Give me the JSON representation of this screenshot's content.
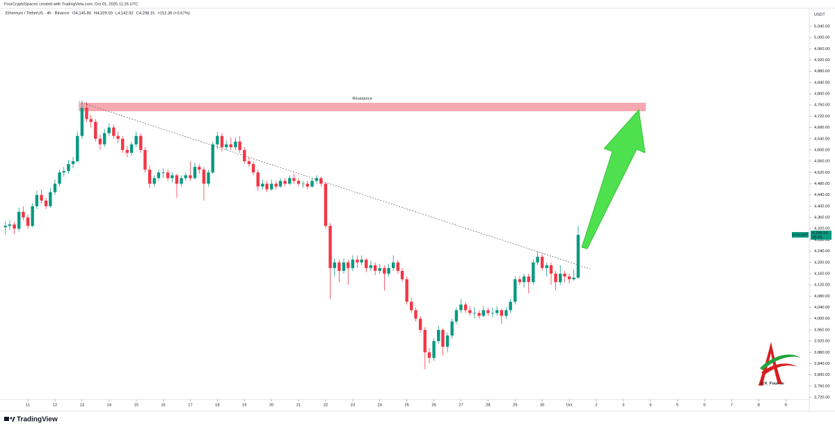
{
  "chart_data": {
    "type": "candlestick",
    "header": "FourCryptoSpaces created with TradingView.com, Oct 01, 2025 11:26 UTC",
    "instrument": "Ethereum / TetherUS · 4h · Binance",
    "legend_values": [
      "O4,145.80",
      "H4,329.00",
      "L4,142.92",
      "C4,298.15",
      "+152.36 (+3.67%)"
    ],
    "y_axis_label": "USDT",
    "symbol": "ETHUSDT",
    "last_price_label": "4,298.15",
    "countdown": "33:26",
    "brand": "TradingView",
    "watermark": "@X_Four_Iv",
    "up_color": "#089981",
    "down_color": "#f23645",
    "xlim": [
      9.97,
      39.79
    ],
    "ylim": [
      3712.5,
      5104
    ],
    "xticks": [
      11,
      12,
      13,
      14,
      15,
      16,
      17,
      18,
      19,
      20,
      21,
      22,
      23,
      24,
      25,
      26,
      27,
      28,
      29,
      30,
      {
        "value": 31,
        "label": "Oct"
      },
      {
        "value": 32,
        "label": "2"
      },
      {
        "value": 33,
        "label": "3"
      },
      {
        "value": 34,
        "label": "4"
      },
      {
        "value": 35,
        "label": "5"
      },
      {
        "value": 36,
        "label": "6"
      },
      {
        "value": 37,
        "label": "7"
      },
      {
        "value": 38,
        "label": "8"
      },
      {
        "value": 39,
        "label": "9"
      }
    ],
    "yticks": [
      {
        "value": 3720,
        "label": "3,720.00"
      },
      {
        "value": 3760,
        "label": "3,760.00"
      },
      {
        "value": 3800,
        "label": "3,800.00"
      },
      {
        "value": 3840,
        "label": "3,840.00"
      },
      {
        "value": 3880,
        "label": "3,880.00"
      },
      {
        "value": 3920,
        "label": "3,920.00"
      },
      {
        "value": 3960,
        "label": "3,960.00"
      },
      {
        "value": 4000,
        "label": "4,000.00"
      },
      {
        "value": 4040,
        "label": "4,040.00"
      },
      {
        "value": 4080,
        "label": "4,080.00"
      },
      {
        "value": 4120,
        "label": "4,120.00"
      },
      {
        "value": 4160,
        "label": "4,160.00"
      },
      {
        "value": 4200,
        "label": "4,200.00"
      },
      {
        "value": 4240,
        "label": "4,240.00"
      },
      {
        "value": 4280,
        "label": "4,280.00"
      },
      {
        "value": 4320,
        "label": "4,320.00"
      },
      {
        "value": 4360,
        "label": "4,360.00"
      },
      {
        "value": 4400,
        "label": "4,400.00"
      },
      {
        "value": 4440,
        "label": "4,440.00"
      },
      {
        "value": 4480,
        "label": "4,480.00"
      },
      {
        "value": 4520,
        "label": "4,520.00"
      },
      {
        "value": 4560,
        "label": "4,560.00"
      },
      {
        "value": 4600,
        "label": "4,600.00"
      },
      {
        "value": 4640,
        "label": "4,640.00"
      },
      {
        "value": 4680,
        "label": "4,680.00"
      },
      {
        "value": 4720,
        "label": "4,720.00"
      },
      {
        "value": 4760,
        "label": "4,760.00"
      },
      {
        "value": 4800,
        "label": "4,800.00"
      },
      {
        "value": 4840,
        "label": "4,840.00"
      },
      {
        "value": 4880,
        "label": "4,880.00"
      },
      {
        "value": 4920,
        "label": "4,920.00"
      },
      {
        "value": 4960,
        "label": "4,960.00"
      },
      {
        "value": 5000,
        "label": "5,000.00"
      },
      {
        "value": 5040,
        "label": "5,040.00"
      }
    ],
    "resistance": {
      "label": "Resistance",
      "color": "#f5a0a8",
      "xlim": [
        12.88,
        33.83
      ],
      "ylim": [
        4738,
        4768
      ]
    },
    "trendline": {
      "x": [
        12.88,
        31.77
      ],
      "y": [
        4772,
        4177
      ]
    },
    "x": [
      10.17,
      10.33,
      10.5,
      10.67,
      10.83,
      11,
      11.17,
      11.33,
      11.5,
      11.67,
      11.83,
      12,
      12.17,
      12.33,
      12.5,
      12.67,
      12.83,
      13,
      13.17,
      13.33,
      13.5,
      13.67,
      13.83,
      14,
      14.17,
      14.33,
      14.5,
      14.67,
      14.83,
      15,
      15.17,
      15.33,
      15.5,
      15.67,
      15.83,
      16,
      16.17,
      16.33,
      16.5,
      16.67,
      16.83,
      17,
      17.17,
      17.33,
      17.5,
      17.67,
      17.83,
      18,
      18.17,
      18.33,
      18.5,
      18.67,
      18.83,
      19,
      19.17,
      19.33,
      19.5,
      19.67,
      19.83,
      20,
      20.17,
      20.33,
      20.5,
      20.67,
      20.83,
      21,
      21.17,
      21.33,
      21.5,
      21.67,
      21.83,
      22,
      22.17,
      22.33,
      22.5,
      22.67,
      22.83,
      23,
      23.17,
      23.33,
      23.5,
      23.67,
      23.83,
      24,
      24.17,
      24.33,
      24.5,
      24.67,
      24.83,
      25,
      25.17,
      25.33,
      25.5,
      25.67,
      25.83,
      26,
      26.17,
      26.33,
      26.5,
      26.67,
      26.83,
      27,
      27.17,
      27.33,
      27.5,
      27.67,
      27.83,
      28,
      28.17,
      28.33,
      28.5,
      28.67,
      28.83,
      29,
      29.17,
      29.33,
      29.5,
      29.67,
      29.83,
      30,
      30.17,
      30.33,
      30.5,
      30.67,
      30.83,
      31,
      31.17,
      31.33
    ],
    "ohlc": [
      [
        4325,
        4345,
        4300,
        4330
      ],
      [
        4330,
        4350,
        4315,
        4335
      ],
      [
        4335,
        4345,
        4300,
        4320
      ],
      [
        4320,
        4395,
        4310,
        4380
      ],
      [
        4380,
        4400,
        4350,
        4360
      ],
      [
        4360,
        4370,
        4320,
        4330
      ],
      [
        4330,
        4410,
        4325,
        4400
      ],
      [
        4400,
        4455,
        4390,
        4440
      ],
      [
        4440,
        4460,
        4410,
        4420
      ],
      [
        4420,
        4430,
        4390,
        4400
      ],
      [
        4400,
        4465,
        4395,
        4450
      ],
      [
        4450,
        4495,
        4440,
        4480
      ],
      [
        4480,
        4530,
        4470,
        4520
      ],
      [
        4520,
        4540,
        4505,
        4525
      ],
      [
        4525,
        4565,
        4515,
        4550
      ],
      [
        4550,
        4575,
        4535,
        4560
      ],
      [
        4560,
        4665,
        4555,
        4650
      ],
      [
        4650,
        4775,
        4640,
        4750
      ],
      [
        4750,
        4770,
        4700,
        4710
      ],
      [
        4710,
        4725,
        4680,
        4700
      ],
      [
        4700,
        4710,
        4630,
        4640
      ],
      [
        4640,
        4655,
        4600,
        4620
      ],
      [
        4620,
        4675,
        4610,
        4660
      ],
      [
        4660,
        4695,
        4650,
        4680
      ],
      [
        4680,
        4690,
        4640,
        4650
      ],
      [
        4650,
        4665,
        4625,
        4640
      ],
      [
        4640,
        4650,
        4590,
        4600
      ],
      [
        4600,
        4615,
        4575,
        4590
      ],
      [
        4590,
        4630,
        4580,
        4620
      ],
      [
        4620,
        4665,
        4610,
        4650
      ],
      [
        4650,
        4660,
        4590,
        4600
      ],
      [
        4600,
        4610,
        4520,
        4530
      ],
      [
        4530,
        4545,
        4465,
        4480
      ],
      [
        4480,
        4510,
        4470,
        4500
      ],
      [
        4500,
        4530,
        4490,
        4520
      ],
      [
        4520,
        4535,
        4500,
        4520
      ],
      [
        4520,
        4530,
        4490,
        4500
      ],
      [
        4500,
        4520,
        4485,
        4510
      ],
      [
        4510,
        4515,
        4430,
        4480
      ],
      [
        4480,
        4510,
        4470,
        4500
      ],
      [
        4500,
        4520,
        4490,
        4510
      ],
      [
        4510,
        4560,
        4490,
        4500
      ],
      [
        4500,
        4555,
        4495,
        4540
      ],
      [
        4540,
        4550,
        4515,
        4530
      ],
      [
        4530,
        4540,
        4420,
        4480
      ],
      [
        4480,
        4530,
        4470,
        4520
      ],
      [
        4520,
        4630,
        4515,
        4620
      ],
      [
        4620,
        4665,
        4605,
        4650
      ],
      [
        4650,
        4660,
        4595,
        4610
      ],
      [
        4610,
        4635,
        4600,
        4620
      ],
      [
        4620,
        4645,
        4600,
        4610
      ],
      [
        4610,
        4645,
        4600,
        4630
      ],
      [
        4630,
        4650,
        4590,
        4600
      ],
      [
        4600,
        4610,
        4550,
        4560
      ],
      [
        4560,
        4575,
        4540,
        4550
      ],
      [
        4550,
        4560,
        4510,
        4520
      ],
      [
        4520,
        4530,
        4455,
        4470
      ],
      [
        4470,
        4495,
        4460,
        4480
      ],
      [
        4480,
        4490,
        4450,
        4460
      ],
      [
        4460,
        4495,
        4455,
        4480
      ],
      [
        4480,
        4490,
        4460,
        4470
      ],
      [
        4470,
        4500,
        4465,
        4490
      ],
      [
        4490,
        4500,
        4470,
        4480
      ],
      [
        4480,
        4510,
        4475,
        4500
      ],
      [
        4500,
        4515,
        4480,
        4490
      ],
      [
        4490,
        4500,
        4470,
        4480
      ],
      [
        4480,
        4490,
        4465,
        4480
      ],
      [
        4480,
        4490,
        4460,
        4470
      ],
      [
        4470,
        4500,
        4465,
        4490
      ],
      [
        4490,
        4510,
        4480,
        4500
      ],
      [
        4500,
        4505,
        4470,
        4480
      ],
      [
        4480,
        4485,
        4320,
        4330
      ],
      [
        4330,
        4340,
        4070,
        4180
      ],
      [
        4180,
        4215,
        4150,
        4200
      ],
      [
        4200,
        4210,
        4130,
        4170
      ],
      [
        4170,
        4215,
        4160,
        4200
      ],
      [
        4200,
        4210,
        4120,
        4180
      ],
      [
        4180,
        4225,
        4170,
        4210
      ],
      [
        4210,
        4225,
        4180,
        4200
      ],
      [
        4200,
        4225,
        4190,
        4210
      ],
      [
        4210,
        4215,
        4165,
        4180
      ],
      [
        4180,
        4205,
        4170,
        4190
      ],
      [
        4190,
        4200,
        4155,
        4170
      ],
      [
        4170,
        4195,
        4160,
        4180
      ],
      [
        4180,
        4190,
        4100,
        4160
      ],
      [
        4160,
        4195,
        4150,
        4180
      ],
      [
        4180,
        4225,
        4170,
        4200
      ],
      [
        4200,
        4210,
        4160,
        4170
      ],
      [
        4170,
        4180,
        4130,
        4140
      ],
      [
        4140,
        4150,
        4050,
        4060
      ],
      [
        4060,
        4075,
        4020,
        4030
      ],
      [
        4030,
        4040,
        3990,
        4000
      ],
      [
        4000,
        4010,
        3950,
        3960
      ],
      [
        3960,
        3970,
        3820,
        3880
      ],
      [
        3880,
        3895,
        3840,
        3860
      ],
      [
        3860,
        3930,
        3850,
        3920
      ],
      [
        3920,
        3975,
        3910,
        3960
      ],
      [
        3960,
        3965,
        3870,
        3900
      ],
      [
        3900,
        3950,
        3880,
        3940
      ],
      [
        3940,
        4000,
        3930,
        3990
      ],
      [
        3990,
        4040,
        3980,
        4030
      ],
      [
        4030,
        4070,
        4020,
        4050
      ],
      [
        4050,
        4060,
        4020,
        4030
      ],
      [
        4030,
        4045,
        4010,
        4020
      ],
      [
        4020,
        4040,
        4000,
        4020
      ],
      [
        4020,
        4030,
        4000,
        4010
      ],
      [
        4010,
        4045,
        4005,
        4030
      ],
      [
        4030,
        4040,
        4010,
        4020
      ],
      [
        4020,
        4040,
        4005,
        4020
      ],
      [
        4020,
        4045,
        4010,
        4030
      ],
      [
        4030,
        4035,
        3980,
        4010
      ],
      [
        4010,
        4040,
        4000,
        4030
      ],
      [
        4030,
        4070,
        4020,
        4060
      ],
      [
        4060,
        4150,
        4050,
        4140
      ],
      [
        4140,
        4150,
        4120,
        4130
      ],
      [
        4130,
        4160,
        4110,
        4150
      ],
      [
        4150,
        4160,
        4090,
        4130
      ],
      [
        4130,
        4210,
        4120,
        4200
      ],
      [
        4200,
        4240,
        4190,
        4220
      ],
      [
        4220,
        4230,
        4170,
        4180
      ],
      [
        4180,
        4200,
        4150,
        4190
      ],
      [
        4190,
        4200,
        4120,
        4160
      ],
      [
        4160,
        4170,
        4100,
        4130
      ],
      [
        4130,
        4190,
        4120,
        4160
      ],
      [
        4160,
        4170,
        4130,
        4150
      ],
      [
        4150,
        4160,
        4125,
        4140
      ],
      [
        4140,
        4175,
        4135,
        4145.8
      ],
      [
        4145.8,
        4329,
        4142.92,
        4298.15
      ]
    ]
  }
}
